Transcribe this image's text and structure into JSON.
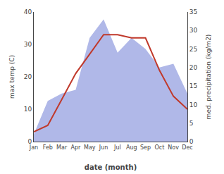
{
  "chart_data": {
    "type": "line",
    "categories": [
      "Jan",
      "Feb",
      "Mar",
      "Apr",
      "May",
      "Jun",
      "Jul",
      "Aug",
      "Sep",
      "Oct",
      "Nov",
      "Dec"
    ],
    "series": [
      {
        "type": "area",
        "axis": "y2",
        "color": "#b0b8e8",
        "values": [
          2,
          11,
          13,
          14,
          28,
          33,
          24,
          28,
          25,
          20,
          21,
          13
        ]
      },
      {
        "type": "line",
        "color": "#c0392b",
        "values": [
          3,
          5,
          13,
          21,
          27,
          33,
          33,
          32,
          32,
          22,
          14,
          10
        ]
      }
    ],
    "xlabel": "date (month)",
    "ylabel": "max temp (C)",
    "y2label": "med. precipitation (kg/m2)",
    "ylim": [
      0,
      40
    ],
    "yticks": [
      0,
      10,
      20,
      30,
      40
    ],
    "y2lim": [
      0,
      35
    ],
    "y2ticks": [
      0,
      5,
      10,
      15,
      20,
      25,
      30,
      35
    ],
    "grid": false
  }
}
